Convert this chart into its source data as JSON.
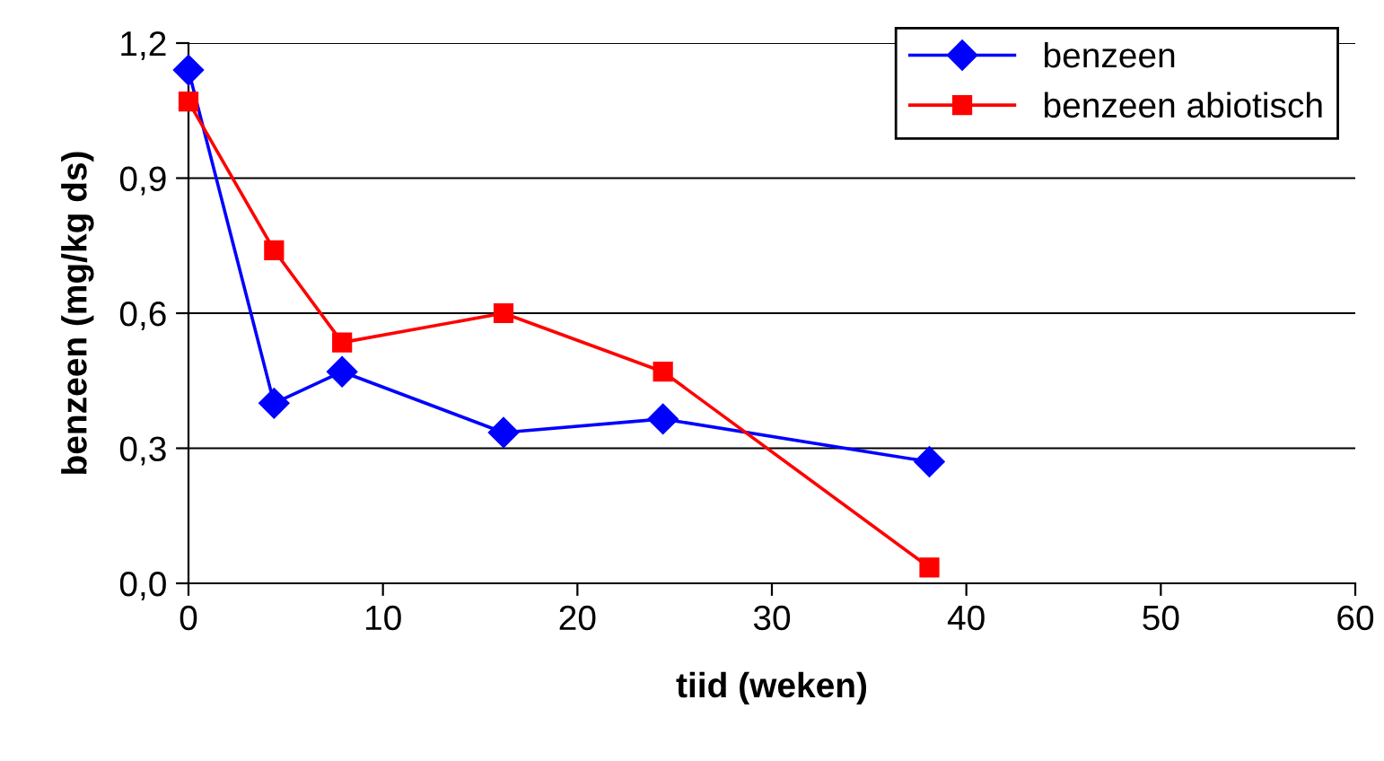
{
  "chart_data": {
    "type": "line",
    "xlabel": "tiid (weken)",
    "ylabel": "benzeen (mg/kg ds)",
    "xlim": [
      0,
      60
    ],
    "xticks": [
      0,
      10,
      20,
      30,
      40,
      50,
      60
    ],
    "ylim": [
      0,
      1.2
    ],
    "yticks": [
      {
        "value": 0,
        "label": "0,0"
      },
      {
        "value": 0.3,
        "label": "0,3"
      },
      {
        "value": 0.6,
        "label": "0,6"
      },
      {
        "value": 0.9,
        "label": "0,9"
      },
      {
        "value": 1.2,
        "label": "1,2"
      }
    ],
    "grid": "y",
    "legend": "top right",
    "series": [
      {
        "name": "benzeen",
        "color": "#0000ff",
        "marker": "diamond",
        "x": [
          0,
          4.4,
          7.9,
          16.2,
          24.4,
          38.1
        ],
        "values": [
          1.14,
          0.4,
          0.47,
          0.335,
          0.365,
          0.27
        ]
      },
      {
        "name": "benzeen abiotisch",
        "color": "#ff0000",
        "marker": "square",
        "x": [
          0,
          4.4,
          7.9,
          16.2,
          24.4,
          38.1
        ],
        "values": [
          1.07,
          0.74,
          0.535,
          0.6,
          0.47,
          0.035
        ]
      }
    ]
  }
}
